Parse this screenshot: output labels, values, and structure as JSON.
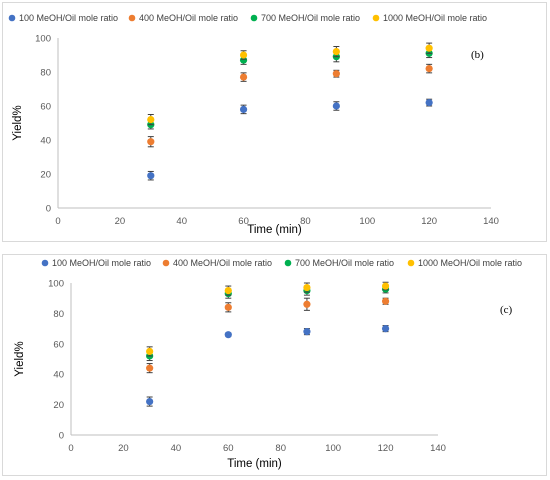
{
  "chart_data": [
    {
      "type": "scatter",
      "tag": "(b)",
      "xlabel": "Time (min)",
      "ylabel": "Yield%",
      "xlim": [
        0,
        140
      ],
      "ylim": [
        0,
        100
      ],
      "xticks": [
        0,
        20,
        40,
        60,
        80,
        100,
        120,
        140
      ],
      "yticks": [
        0,
        20,
        40,
        60,
        80,
        100
      ],
      "grid": false,
      "legend_position": "top",
      "series": [
        {
          "name": "100 MeOH/Oil mole ratio",
          "color": "#4472c4",
          "x": [
            30,
            60,
            90,
            120
          ],
          "y": [
            19,
            58,
            60,
            62
          ],
          "err": [
            2.5,
            2.5,
            2.5,
            2
          ]
        },
        {
          "name": "400 MeOH/Oil mole ratio",
          "color": "#ed7d31",
          "x": [
            30,
            60,
            90,
            120
          ],
          "y": [
            39,
            77,
            79,
            82
          ],
          "err": [
            3,
            2.5,
            2,
            2.5
          ]
        },
        {
          "name": "700 MeOH/Oil mole ratio",
          "color": "#00b050",
          "x": [
            30,
            60,
            90,
            120
          ],
          "y": [
            49,
            87,
            89,
            91
          ],
          "err": [
            2.5,
            2.5,
            3,
            2.5
          ]
        },
        {
          "name": "1000 MeOH/Oil mole ratio",
          "color": "#ffc000",
          "x": [
            30,
            60,
            90,
            120
          ],
          "y": [
            52,
            90,
            92,
            94
          ],
          "err": [
            3,
            2.5,
            3,
            3
          ]
        }
      ]
    },
    {
      "type": "scatter",
      "tag": "(c)",
      "xlabel": "Time (min)",
      "ylabel": "Yield%",
      "xlim": [
        0,
        140
      ],
      "ylim": [
        0,
        100
      ],
      "xticks": [
        0,
        20,
        40,
        60,
        80,
        100,
        120,
        140
      ],
      "yticks": [
        0,
        20,
        40,
        60,
        80,
        100
      ],
      "grid": false,
      "legend_position": "top",
      "series": [
        {
          "name": "100 MeOH/Oil mole ratio",
          "color": "#4472c4",
          "x": [
            30,
            60,
            90,
            120
          ],
          "y": [
            22,
            66,
            68,
            70
          ],
          "err": [
            3,
            1,
            2,
            2
          ]
        },
        {
          "name": "400 MeOH/Oil mole ratio",
          "color": "#ed7d31",
          "x": [
            30,
            60,
            90,
            120
          ],
          "y": [
            44,
            84,
            86,
            88
          ],
          "err": [
            3,
            3,
            4,
            2
          ]
        },
        {
          "name": "700 MeOH/Oil mole ratio",
          "color": "#00b050",
          "x": [
            30,
            60,
            90,
            120
          ],
          "y": [
            52,
            93,
            95,
            96
          ],
          "err": [
            3,
            3,
            3,
            2.5
          ]
        },
        {
          "name": "1000 MeOH/Oil mole ratio",
          "color": "#ffc000",
          "x": [
            30,
            60,
            90,
            120
          ],
          "y": [
            55,
            95,
            97,
            98
          ],
          "err": [
            3,
            3,
            3,
            2.5
          ]
        }
      ]
    }
  ]
}
